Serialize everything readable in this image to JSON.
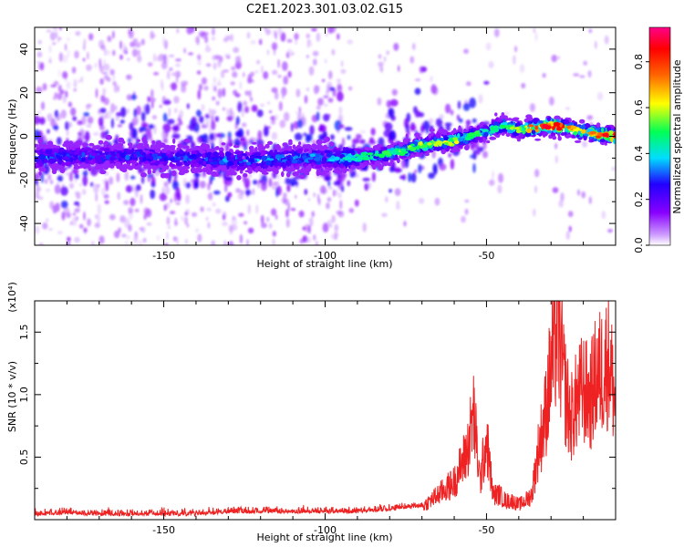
{
  "figure": {
    "title": "C2E1.2023.301.03.02.G15"
  },
  "chart_data": [
    {
      "type": "heatmap",
      "title": "C2E1.2023.301.03.02.G15",
      "xlabel": "Height of straight line (km)",
      "ylabel": "Frequency (Hz)",
      "xlim": [
        -190,
        -10
      ],
      "ylim": [
        -50,
        50
      ],
      "x_ticks": [
        -150,
        -100,
        -50
      ],
      "y_ticks": [
        -40,
        -20,
        0,
        20,
        40
      ],
      "colorbar": {
        "label": "Normalized spectral amplitude",
        "range": [
          0,
          0.95
        ],
        "ticks": [
          0.0,
          0.2,
          0.4,
          0.6,
          0.8
        ],
        "colormap": [
          "#ffffff",
          "#cc99ff",
          "#8800ff",
          "#2200ff",
          "#00ddff",
          "#00ff55",
          "#ffff00",
          "#ff6600",
          "#ff0000",
          "#ff0088"
        ]
      },
      "ridge": {
        "description_free": true,
        "x": [
          -190,
          -180,
          -170,
          -160,
          -150,
          -140,
          -130,
          -120,
          -110,
          -100,
          -90,
          -80,
          -70,
          -60,
          -50,
          -45,
          -40,
          -35,
          -30,
          -25,
          -20,
          -15,
          -10
        ],
        "y": [
          -10,
          -9,
          -9,
          -9,
          -10,
          -10,
          -11,
          -11,
          -10,
          -10,
          -10,
          -8,
          -4,
          -2,
          2,
          5,
          3,
          4,
          5,
          4,
          2,
          1,
          0
        ],
        "amplitude": [
          0.35,
          0.3,
          0.3,
          0.3,
          0.3,
          0.32,
          0.35,
          0.35,
          0.35,
          0.35,
          0.45,
          0.5,
          0.6,
          0.6,
          0.45,
          0.5,
          0.6,
          0.8,
          0.9,
          0.75,
          0.7,
          0.8,
          0.9
        ]
      },
      "grid": false
    },
    {
      "type": "line",
      "xlabel": "Height of straight line (km)",
      "ylabel": "SNR (10 * v/v)",
      "y_multiplier_label": "(x10⁴)",
      "xlim": [
        -190,
        -10
      ],
      "ylim": [
        0,
        1.75
      ],
      "x_ticks": [
        -150,
        -100,
        -50
      ],
      "y_ticks": [
        0.5,
        1.0,
        1.5
      ],
      "y_tick_labels": [
        "0.5",
        "1.0",
        "1.5"
      ],
      "x_tick_labels": [
        "-150",
        "-100",
        "-50"
      ],
      "series": [
        {
          "color": "#ee2222",
          "x": [
            -190,
            -180,
            -170,
            -160,
            -150,
            -140,
            -130,
            -120,
            -110,
            -100,
            -90,
            -80,
            -70,
            -65,
            -60,
            -56,
            -54,
            -52,
            -50,
            -48,
            -46,
            -44,
            -42,
            -40,
            -38,
            -36,
            -34,
            -32,
            -30,
            -28,
            -26,
            -24,
            -22,
            -20,
            -18,
            -16,
            -14,
            -12,
            -10
          ],
          "y": [
            0.03,
            0.04,
            0.03,
            0.03,
            0.03,
            0.03,
            0.05,
            0.05,
            0.05,
            0.05,
            0.05,
            0.07,
            0.1,
            0.2,
            0.3,
            0.55,
            0.85,
            0.3,
            0.65,
            0.2,
            0.2,
            0.15,
            0.15,
            0.12,
            0.15,
            0.2,
            0.55,
            0.8,
            1.2,
            1.6,
            1.1,
            0.8,
            0.95,
            1.05,
            0.95,
            1.15,
            1.2,
            1.3,
            0.9
          ]
        }
      ],
      "grid": false
    }
  ]
}
